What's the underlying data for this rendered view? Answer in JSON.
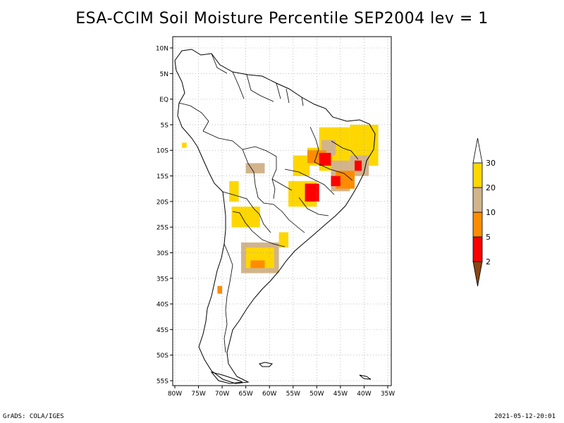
{
  "title": "ESA-CCIM Soil Moisture Percentile SEP2004 lev = 1",
  "footer": {
    "left": "GrADS: COLA/IGES",
    "right": "2021-05-12-20:01"
  },
  "map": {
    "lat_range": [
      -55,
      10
    ],
    "lon_range": [
      -80,
      -35
    ],
    "lat_ticks": [
      {
        "value": 10,
        "label": "10N"
      },
      {
        "value": 5,
        "label": "5N"
      },
      {
        "value": 0,
        "label": "EQ"
      },
      {
        "value": -5,
        "label": "5S"
      },
      {
        "value": -10,
        "label": "10S"
      },
      {
        "value": -15,
        "label": "15S"
      },
      {
        "value": -20,
        "label": "20S"
      },
      {
        "value": -25,
        "label": "25S"
      },
      {
        "value": -30,
        "label": "30S"
      },
      {
        "value": -35,
        "label": "35S"
      },
      {
        "value": -40,
        "label": "40S"
      },
      {
        "value": -45,
        "label": "45S"
      },
      {
        "value": -50,
        "label": "50S"
      },
      {
        "value": -55,
        "label": "55S"
      }
    ],
    "lon_ticks": [
      {
        "value": -80,
        "label": "80W"
      },
      {
        "value": -75,
        "label": "75W"
      },
      {
        "value": -70,
        "label": "70W"
      },
      {
        "value": -65,
        "label": "65W"
      },
      {
        "value": -60,
        "label": "60W"
      },
      {
        "value": -55,
        "label": "55W"
      },
      {
        "value": -50,
        "label": "50W"
      },
      {
        "value": -45,
        "label": "45W"
      },
      {
        "value": -40,
        "label": "40W"
      },
      {
        "value": -35,
        "label": "35W"
      }
    ],
    "grid": true,
    "regions": [
      {
        "lon": [
          -49.5,
          -43
        ],
        "lat": [
          -14,
          -5.5
        ],
        "level": "20-30"
      },
      {
        "lon": [
          -43,
          -37
        ],
        "lat": [
          -13,
          -5
        ],
        "level": "20-30"
      },
      {
        "lon": [
          -52,
          -47.5
        ],
        "lat": [
          -13,
          -9.5
        ],
        "level": "20-30"
      },
      {
        "lon": [
          -55,
          -51.5
        ],
        "lat": [
          -15,
          -11
        ],
        "level": "20-30"
      },
      {
        "lon": [
          -56,
          -50
        ],
        "lat": [
          -21,
          -16
        ],
        "level": "20-30"
      },
      {
        "lon": [
          -47,
          -43
        ],
        "lat": [
          -18,
          -12
        ],
        "level": "10-20"
      },
      {
        "lon": [
          -43,
          -39
        ],
        "lat": [
          -15,
          -11
        ],
        "level": "10-20"
      },
      {
        "lon": [
          -49,
          -46
        ],
        "lat": [
          -11,
          -8
        ],
        "level": "10-20"
      },
      {
        "lon": [
          -52,
          -48
        ],
        "lat": [
          -12.5,
          -10
        ],
        "level": "5-10"
      },
      {
        "lon": [
          -46,
          -42
        ],
        "lat": [
          -17.5,
          -14
        ],
        "level": "5-10"
      },
      {
        "lon": [
          -49.5,
          -47
        ],
        "lat": [
          -13,
          -10.5
        ],
        "level": "2-5"
      },
      {
        "lon": [
          -52.5,
          -49.5
        ],
        "lat": [
          -20,
          -16.5
        ],
        "level": "2-5"
      },
      {
        "lon": [
          -47,
          -45
        ],
        "lat": [
          -17,
          -15
        ],
        "level": "2-5"
      },
      {
        "lon": [
          -42,
          -40.5
        ],
        "lat": [
          -14,
          -12
        ],
        "level": "2-5"
      },
      {
        "lon": [
          -65,
          -61
        ],
        "lat": [
          -14.5,
          -12.5
        ],
        "level": "10-20"
      },
      {
        "lon": [
          -68.5,
          -66.5
        ],
        "lat": [
          -20,
          -16
        ],
        "level": "20-30"
      },
      {
        "lon": [
          -68,
          -62
        ],
        "lat": [
          -25,
          -21
        ],
        "level": "20-30"
      },
      {
        "lon": [
          -66,
          -58
        ],
        "lat": [
          -34,
          -28
        ],
        "level": "10-20"
      },
      {
        "lon": [
          -65,
          -59
        ],
        "lat": [
          -33,
          -29
        ],
        "level": "20-30"
      },
      {
        "lon": [
          -64,
          -61
        ],
        "lat": [
          -33,
          -31.5
        ],
        "level": "5-10"
      },
      {
        "lon": [
          -58,
          -56
        ],
        "lat": [
          -29,
          -26
        ],
        "level": "20-30"
      },
      {
        "lon": [
          -71,
          -70
        ],
        "lat": [
          -38,
          -36.5
        ],
        "level": "5-10"
      },
      {
        "lon": [
          -78.5,
          -77.5
        ],
        "lat": [
          -9.5,
          -8.5
        ],
        "level": "20-30"
      }
    ]
  },
  "colorbar": {
    "boundaries": [
      "2",
      "5",
      "10",
      "20",
      "30"
    ],
    "segments": [
      {
        "range": "<2",
        "color": "#8b4513"
      },
      {
        "range": "2-5",
        "color": "#ff0000"
      },
      {
        "range": "5-10",
        "color": "#ff8c00"
      },
      {
        "range": "10-20",
        "color": "#d2b48c"
      },
      {
        "range": "20-30",
        "color": "#ffd700"
      },
      {
        "range": ">30",
        "color": "#ffffff"
      }
    ]
  }
}
